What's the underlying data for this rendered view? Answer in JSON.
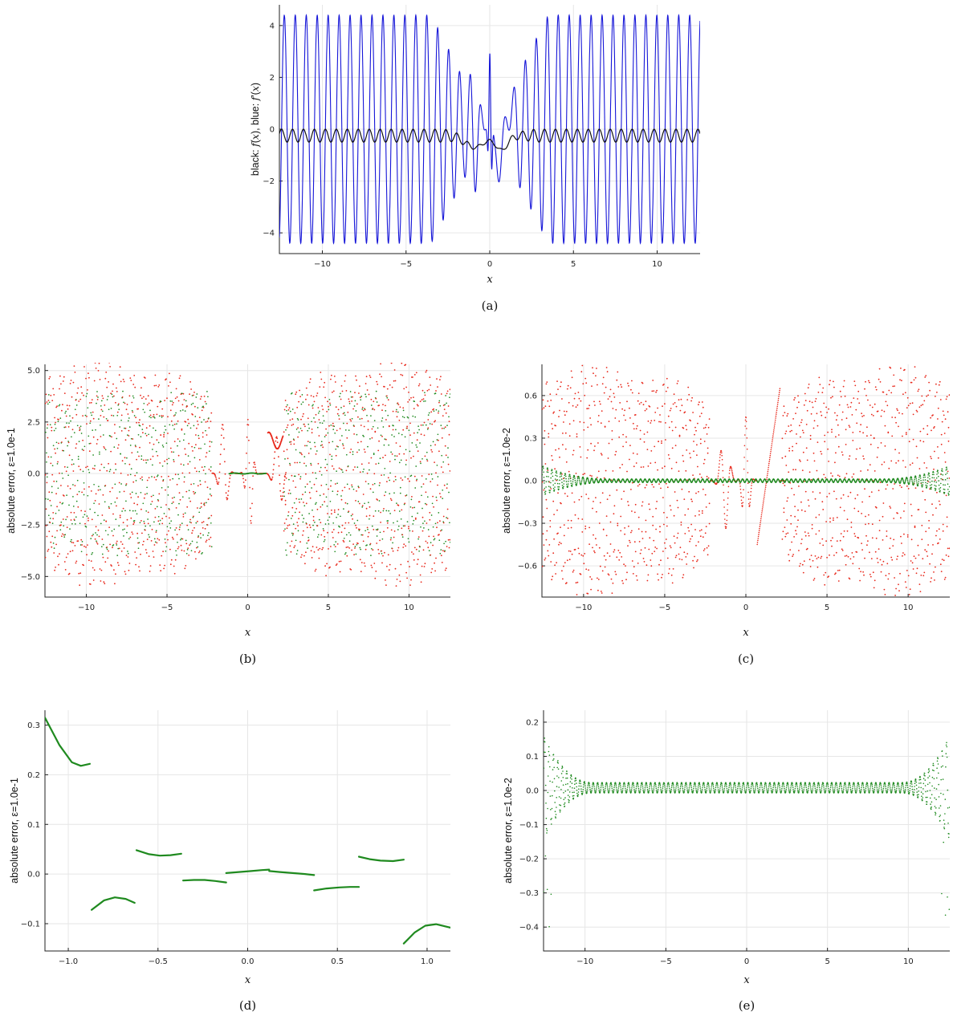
{
  "chart_data": [
    {
      "id": "a",
      "type": "line",
      "caption": "(a)",
      "xlabel": "x",
      "ylabel_parts": [
        "black: ",
        "f",
        "(",
        "x",
        "), blue: ",
        "f",
        "'(",
        "x",
        ")"
      ],
      "xlim": [
        -12.566,
        12.566
      ],
      "ylim": [
        -4.8,
        4.8
      ],
      "xticks": [
        -10,
        -5,
        0,
        5,
        10
      ],
      "yticks": [
        -4,
        -2,
        0,
        2,
        4
      ],
      "grid": true,
      "series": [
        {
          "color": "#1515d8",
          "label": "f'(x)",
          "model": "oscillating derivative, amplitude ~4.4 for |x|>3, small irregular bumps near 0"
        },
        {
          "color": "#111111",
          "label": "f(x)",
          "model": "oscillates between 0 and -0.5, dips to ~-0.85 near x=-0.9 and x=0.8"
        }
      ]
    },
    {
      "id": "b",
      "type": "scatter",
      "caption": "(b)",
      "xlabel": "x",
      "ylabel": "absolute error, ε=1.0e-1",
      "xlim": [
        -12.566,
        12.566
      ],
      "ylim": [
        -6.0,
        5.3
      ],
      "xticks": [
        -10,
        -5,
        0,
        5,
        10
      ],
      "yticks": [
        -5.0,
        -2.5,
        0.0,
        2.5,
        5.0
      ],
      "grid": true,
      "series": [
        {
          "color": "#e8291c",
          "envelope": 5.2
        },
        {
          "color": "#1f8a1f",
          "envelope": 4.4
        }
      ]
    },
    {
      "id": "c",
      "type": "scatter",
      "caption": "(c)",
      "xlabel": "x",
      "ylabel": "absolute error, ε=1.0e-2",
      "xlim": [
        -12.566,
        12.566
      ],
      "ylim": [
        -0.82,
        0.82
      ],
      "xticks": [
        -10,
        -5,
        0,
        5,
        10
      ],
      "yticks": [
        -0.6,
        -0.3,
        0.0,
        0.3,
        0.6
      ],
      "grid": true,
      "series": [
        {
          "color": "#e8291c",
          "envelope": 0.77
        },
        {
          "color": "#1f8a1f",
          "envelope": 0.02
        }
      ]
    },
    {
      "id": "d",
      "type": "scatter",
      "caption": "(d)",
      "xlabel": "x",
      "ylabel": "absolute error, ε=1.0e-1",
      "xlim": [
        -1.13,
        1.13
      ],
      "ylim": [
        -0.155,
        0.33
      ],
      "xticks": [
        -1.0,
        -0.5,
        0.0,
        0.5,
        1.0
      ],
      "yticks": [
        -0.1,
        0.0,
        0.1,
        0.2,
        0.3
      ],
      "grid": true,
      "series": [
        {
          "color": "#1f8a1f",
          "segments": [
            {
              "x": [
                -1.13,
                -1.05,
                -0.98,
                -0.93,
                -0.88
              ],
              "y": [
                0.315,
                0.26,
                0.225,
                0.218,
                0.222
              ]
            },
            {
              "x": [
                -0.87,
                -0.8,
                -0.74,
                -0.68,
                -0.63
              ],
              "y": [
                -0.072,
                -0.053,
                -0.047,
                -0.05,
                -0.058
              ]
            },
            {
              "x": [
                -0.62,
                -0.55,
                -0.49,
                -0.43,
                -0.37
              ],
              "y": [
                0.048,
                0.04,
                0.037,
                0.038,
                0.041
              ]
            },
            {
              "x": [
                -0.36,
                -0.3,
                -0.24,
                -0.18,
                -0.12
              ],
              "y": [
                -0.013,
                -0.012,
                -0.012,
                -0.014,
                -0.017
              ]
            },
            {
              "x": [
                -0.12,
                -0.05,
                0.02,
                0.08,
                0.12
              ],
              "y": [
                0.002,
                0.004,
                0.006,
                0.008,
                0.009
              ]
            },
            {
              "x": [
                0.12,
                0.18,
                0.25,
                0.32,
                0.37
              ],
              "y": [
                0.006,
                0.004,
                0.002,
                0.0,
                -0.002
              ]
            },
            {
              "x": [
                0.37,
                0.44,
                0.51,
                0.57,
                0.62
              ],
              "y": [
                -0.033,
                -0.029,
                -0.027,
                -0.026,
                -0.026
              ]
            },
            {
              "x": [
                0.62,
                0.68,
                0.74,
                0.81,
                0.87
              ],
              "y": [
                0.035,
                0.03,
                0.027,
                0.026,
                0.029
              ]
            },
            {
              "x": [
                0.87,
                0.93,
                0.99,
                1.05,
                1.13
              ],
              "y": [
                -0.14,
                -0.118,
                -0.104,
                -0.101,
                -0.108
              ]
            }
          ]
        }
      ]
    },
    {
      "id": "e",
      "type": "scatter",
      "caption": "(e)",
      "xlabel": "x",
      "ylabel": "absolute error, ε=1.0e-2",
      "xlim": [
        -12.566,
        12.566
      ],
      "ylim": [
        -0.47,
        0.235
      ],
      "xticks": [
        -10,
        -5,
        0,
        5,
        10
      ],
      "yticks": [
        -0.4,
        -0.3,
        -0.2,
        -0.1,
        0.0,
        0.1,
        0.2
      ],
      "grid": true,
      "series": [
        {
          "color": "#1f8a1f",
          "envelope_center": 0.02,
          "envelope_edge": 0.2
        }
      ]
    }
  ]
}
